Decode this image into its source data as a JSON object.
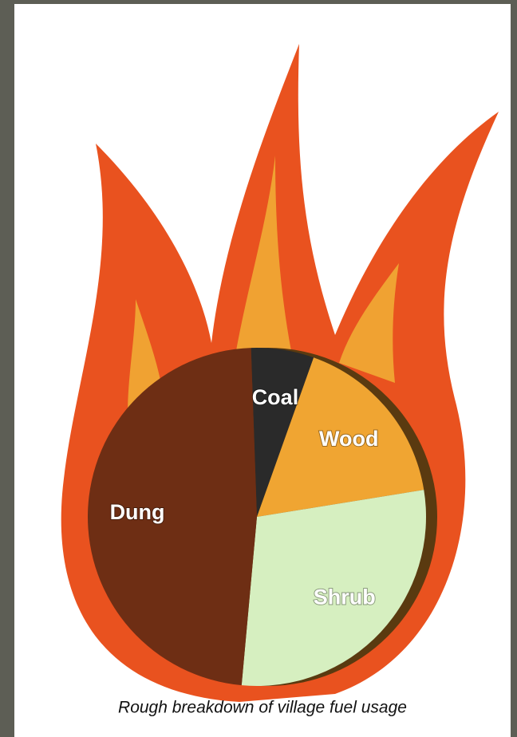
{
  "chart_data": {
    "type": "pie",
    "caption": "Rough breakdown of village fuel usage",
    "categories": [
      "Coal",
      "Wood",
      "Shrub",
      "Dung"
    ],
    "values": [
      6,
      17,
      29,
      48
    ],
    "colors": [
      "#2a2a2a",
      "#f0a532",
      "#d6efc0",
      "#6e2e14"
    ]
  }
}
